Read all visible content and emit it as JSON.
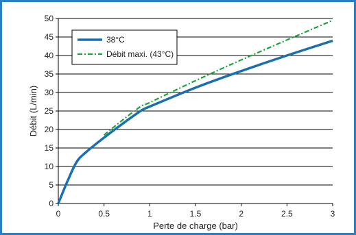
{
  "chart_data": {
    "type": "line",
    "xlabel": "Perte de charge (bar)",
    "ylabel": "Débit (L/min)",
    "xlim": [
      0,
      3
    ],
    "ylim": [
      0,
      50
    ],
    "x_ticks": [
      "0",
      "0.5",
      "1",
      "1.5",
      "2",
      "2.5",
      "3"
    ],
    "y_ticks": [
      "0",
      "5",
      "10",
      "15",
      "20",
      "25",
      "30",
      "35",
      "40",
      "45",
      "50"
    ],
    "grid": "horizontal",
    "legend_position": "top-left",
    "series": [
      {
        "name": "38°C",
        "color": "#1a6fb0",
        "style": "solid",
        "points": [
          [
            0,
            0
          ],
          [
            0.1,
            6
          ],
          [
            0.2,
            11.2
          ],
          [
            0.3,
            13.8
          ],
          [
            0.5,
            17.8
          ],
          [
            0.7,
            21.5
          ],
          [
            0.9,
            25
          ],
          [
            1.0,
            26.2
          ],
          [
            1.5,
            31.3
          ],
          [
            2.0,
            35.8
          ],
          [
            2.5,
            40
          ],
          [
            3.0,
            44
          ]
        ]
      },
      {
        "name": "Débit maxi. (43°C)",
        "color": "#1aa33a",
        "style": "dash-dot",
        "points": [
          [
            0.5,
            18.5
          ],
          [
            0.7,
            22.5
          ],
          [
            0.9,
            26.2
          ],
          [
            1.0,
            27.3
          ],
          [
            1.5,
            33.2
          ],
          [
            2.0,
            38.8
          ],
          [
            2.5,
            44.2
          ],
          [
            3.0,
            49.5
          ]
        ]
      }
    ]
  }
}
